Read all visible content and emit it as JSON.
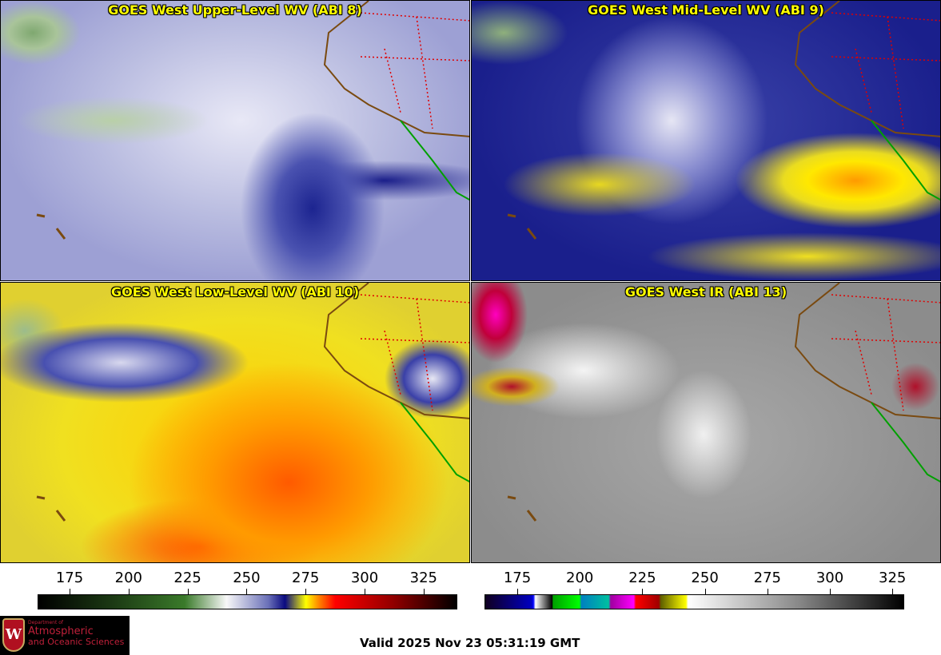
{
  "panels": [
    {
      "title": "GOES West Upper-Level WV (ABI 8)"
    },
    {
      "title": "GOES West Mid-Level WV (ABI 9)"
    },
    {
      "title": "GOES West Low-Level WV (ABI 10)"
    },
    {
      "title": "GOES West IR (ABI 13)"
    }
  ],
  "colorbars": [
    {
      "name": "water-vapor",
      "ticks": [
        "175",
        "200",
        "225",
        "250",
        "275",
        "300",
        "325"
      ]
    },
    {
      "name": "infrared",
      "ticks": [
        "175",
        "200",
        "225",
        "250",
        "275",
        "300",
        "325"
      ]
    }
  ],
  "logo": {
    "line1": "Department of",
    "line2": "Atmospheric",
    "line3": "and Oceanic Sciences",
    "crest": "W"
  },
  "valid_time": "Valid 2025 Nov 23 05:31:19 GMT"
}
